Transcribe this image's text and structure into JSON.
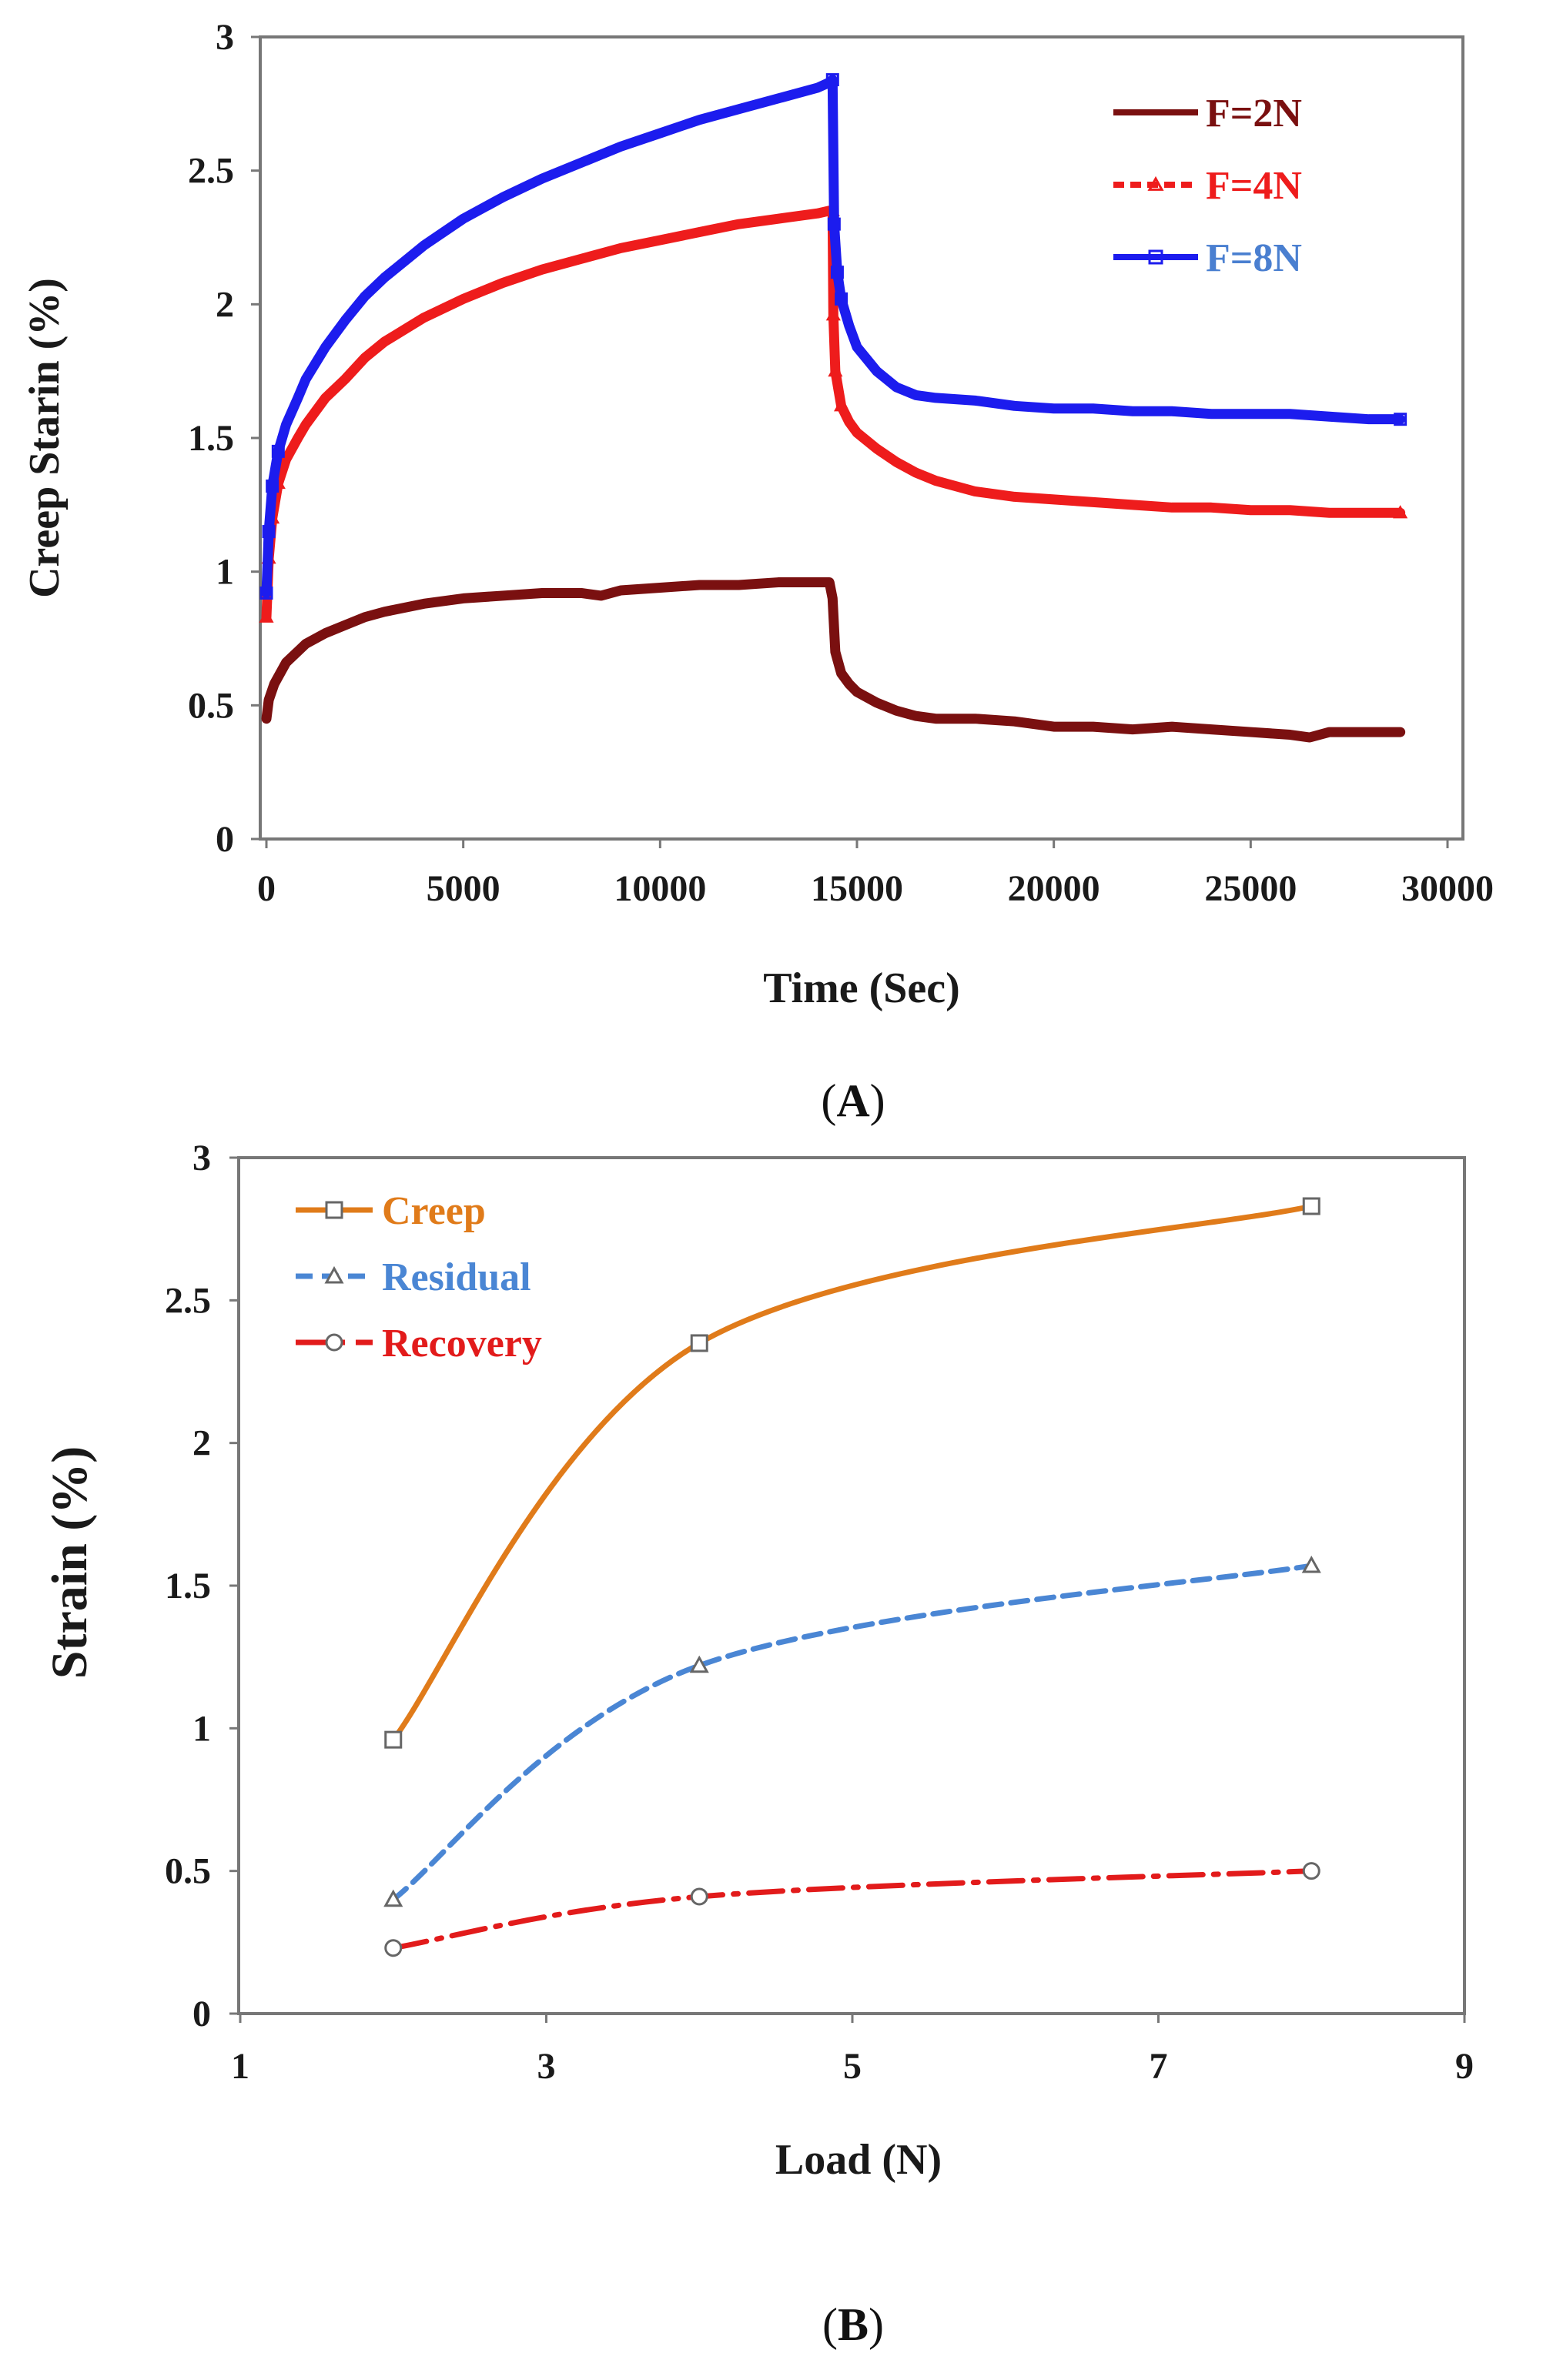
{
  "chart_data": [
    {
      "panel": "A",
      "type": "line",
      "xlabel": "Time (Sec)",
      "ylabel": "Creep Starin (%)",
      "xlim": [
        0,
        30000
      ],
      "ylim": [
        0,
        3
      ],
      "xticks": [
        0,
        5000,
        10000,
        15000,
        20000,
        25000,
        30000
      ],
      "yticks": [
        0,
        0.5,
        1,
        1.5,
        2,
        2.5,
        3
      ],
      "grid": false,
      "legend_position": "top-right",
      "series": [
        {
          "name": "F=2N",
          "color": "#7a1010",
          "marker": "none",
          "x": [
            0,
            60,
            200,
            500,
            1000,
            1500,
            2000,
            2500,
            3000,
            4000,
            5000,
            6000,
            7000,
            8000,
            8500,
            9000,
            10000,
            11000,
            12000,
            13000,
            14000,
            14300,
            14380,
            14450,
            14600,
            14800,
            15000,
            15500,
            16000,
            16500,
            17000,
            18000,
            19000,
            20000,
            21000,
            22000,
            23000,
            24000,
            25000,
            26000,
            26500,
            27000,
            28000,
            28800
          ],
          "y": [
            0.45,
            0.52,
            0.58,
            0.66,
            0.73,
            0.77,
            0.8,
            0.83,
            0.85,
            0.88,
            0.9,
            0.91,
            0.92,
            0.92,
            0.91,
            0.93,
            0.94,
            0.95,
            0.95,
            0.96,
            0.96,
            0.96,
            0.9,
            0.7,
            0.62,
            0.58,
            0.55,
            0.51,
            0.48,
            0.46,
            0.45,
            0.45,
            0.44,
            0.42,
            0.42,
            0.41,
            0.42,
            0.41,
            0.4,
            0.39,
            0.38,
            0.4,
            0.4,
            0.4
          ]
        },
        {
          "name": "F=4N",
          "color": "#ee1c1c",
          "marker": "triangle",
          "x": [
            0,
            60,
            150,
            300,
            500,
            800,
            1000,
            1500,
            2000,
            2500,
            3000,
            4000,
            5000,
            6000,
            7000,
            8000,
            9000,
            10000,
            11000,
            12000,
            13000,
            14000,
            14300,
            14380,
            14400,
            14450,
            14600,
            14800,
            15000,
            15500,
            16000,
            16500,
            17000,
            18000,
            19000,
            20000,
            21000,
            22000,
            23000,
            24000,
            25000,
            26000,
            27000,
            28000,
            28800
          ],
          "y": [
            0.83,
            1.05,
            1.2,
            1.33,
            1.42,
            1.5,
            1.55,
            1.65,
            1.72,
            1.8,
            1.86,
            1.95,
            2.02,
            2.08,
            2.13,
            2.17,
            2.21,
            2.24,
            2.27,
            2.3,
            2.32,
            2.34,
            2.35,
            2.35,
            1.96,
            1.75,
            1.62,
            1.56,
            1.52,
            1.46,
            1.41,
            1.37,
            1.34,
            1.3,
            1.28,
            1.27,
            1.26,
            1.25,
            1.24,
            1.24,
            1.23,
            1.23,
            1.22,
            1.22,
            1.22
          ]
        },
        {
          "name": "F=8N",
          "color": "#1c1cee",
          "marker": "square",
          "x": [
            0,
            60,
            150,
            300,
            500,
            800,
            1000,
            1500,
            2000,
            2500,
            3000,
            4000,
            5000,
            6000,
            7000,
            8000,
            9000,
            10000,
            11000,
            12000,
            13000,
            14000,
            14300,
            14380,
            14420,
            14500,
            14600,
            14800,
            15000,
            15500,
            16000,
            16500,
            17000,
            18000,
            19000,
            20000,
            21000,
            22000,
            23000,
            24000,
            25000,
            26000,
            27000,
            28000,
            28800
          ],
          "y": [
            0.92,
            1.15,
            1.32,
            1.45,
            1.55,
            1.65,
            1.72,
            1.84,
            1.94,
            2.03,
            2.1,
            2.22,
            2.32,
            2.4,
            2.47,
            2.53,
            2.59,
            2.64,
            2.69,
            2.73,
            2.77,
            2.81,
            2.83,
            2.84,
            2.3,
            2.12,
            2.02,
            1.92,
            1.84,
            1.75,
            1.69,
            1.66,
            1.65,
            1.64,
            1.62,
            1.61,
            1.61,
            1.6,
            1.6,
            1.59,
            1.59,
            1.59,
            1.58,
            1.57,
            1.57
          ]
        }
      ]
    },
    {
      "panel": "B",
      "type": "line",
      "xlabel": "Load (N)",
      "ylabel": "Strain (%)",
      "xlim": [
        1,
        9
      ],
      "ylim": [
        0,
        3
      ],
      "xticks": [
        1,
        3,
        5,
        7,
        9
      ],
      "yticks": [
        0,
        0.5,
        1,
        1.5,
        2,
        2.5,
        3
      ],
      "grid": false,
      "legend_position": "top-left",
      "x": [
        2,
        4,
        8
      ],
      "series": [
        {
          "name": "Creep",
          "color": "#e07b1a",
          "marker": "square",
          "dash": "solid",
          "values": [
            0.96,
            2.35,
            2.83
          ]
        },
        {
          "name": "Residual",
          "color": "#4a86d4",
          "marker": "triangle",
          "dash": "dashed",
          "values": [
            0.4,
            1.22,
            1.57
          ]
        },
        {
          "name": "Recovery",
          "color": "#e21b1b",
          "marker": "circle",
          "dash": "dash-dot",
          "values": [
            0.23,
            0.41,
            0.5
          ]
        }
      ]
    }
  ],
  "labels": {
    "panel_a": "A",
    "panel_b": "B",
    "paren_open": "(",
    "paren_close": ")"
  }
}
